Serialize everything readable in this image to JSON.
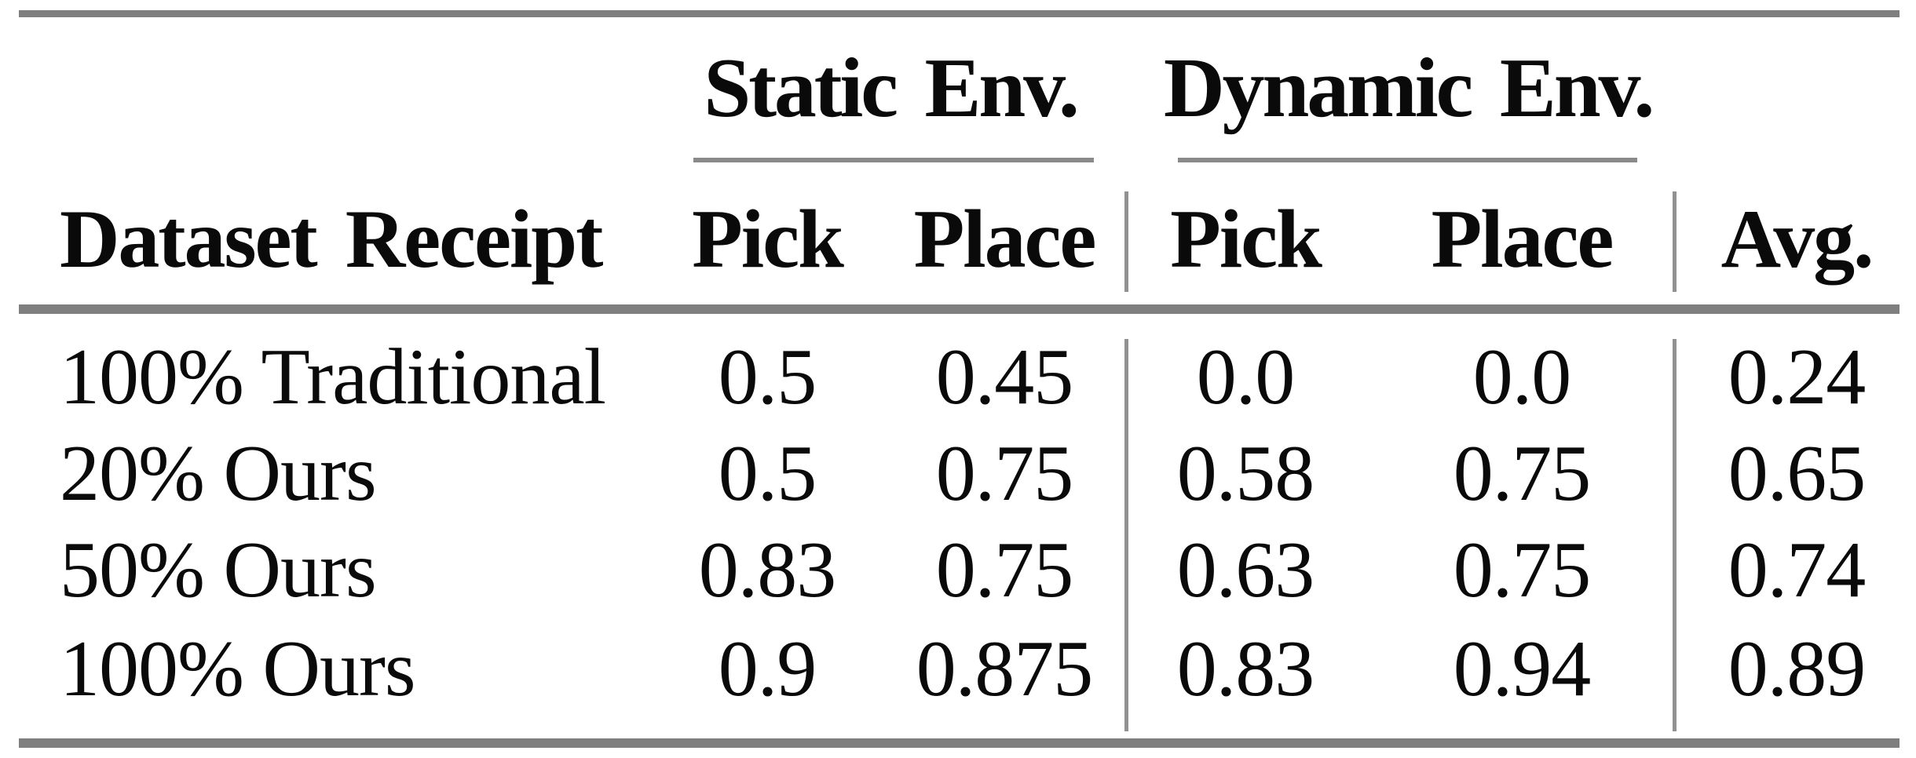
{
  "table": {
    "group_headers": [
      {
        "label": "Static Env."
      },
      {
        "label": "Dynamic Env."
      }
    ],
    "column_headers": {
      "dataset": "Dataset Receipt",
      "static_pick": "Pick",
      "static_place": "Place",
      "dynamic_pick": "Pick",
      "dynamic_place": "Place",
      "avg": "Avg."
    },
    "rows": [
      {
        "label": "100% Traditional",
        "static_pick": "0.5",
        "static_place": "0.45",
        "dynamic_pick": "0.0",
        "dynamic_place": "0.0",
        "avg": "0.24"
      },
      {
        "label": "20% Ours",
        "static_pick": "0.5",
        "static_place": "0.75",
        "dynamic_pick": "0.58",
        "dynamic_place": "0.75",
        "avg": "0.65"
      },
      {
        "label": "50% Ours",
        "static_pick": "0.83",
        "static_place": "0.75",
        "dynamic_pick": "0.63",
        "dynamic_place": "0.75",
        "avg": "0.74"
      },
      {
        "label": "100% Ours",
        "static_pick": "0.9",
        "static_place": "0.875",
        "dynamic_pick": "0.83",
        "dynamic_place": "0.94",
        "avg": "0.89"
      }
    ],
    "colors": {
      "thick_rule": "#7f7f7f",
      "thin_rule": "#919191",
      "group_underline": "#8a8a8a",
      "text": "#0a0a0a",
      "background": "#ffffff"
    }
  },
  "chart_data": {
    "type": "table",
    "columns": [
      "Dataset Receipt",
      "Static Env. Pick",
      "Static Env. Place",
      "Dynamic Env. Pick",
      "Dynamic Env. Place",
      "Avg."
    ],
    "rows": [
      [
        "100% Traditional",
        0.5,
        0.45,
        0.0,
        0.0,
        0.24
      ],
      [
        "20% Ours",
        0.5,
        0.75,
        0.58,
        0.75,
        0.65
      ],
      [
        "50% Ours",
        0.83,
        0.75,
        0.63,
        0.75,
        0.74
      ],
      [
        "100% Ours",
        0.9,
        0.875,
        0.83,
        0.94,
        0.89
      ]
    ]
  }
}
